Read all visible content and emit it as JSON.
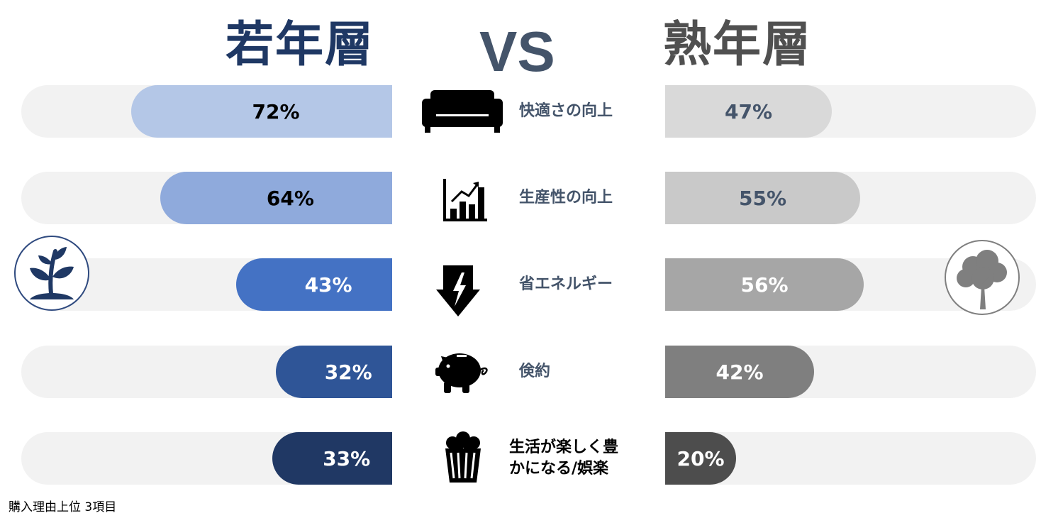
{
  "title_left": "若年層",
  "title_vs": "VS",
  "title_right": "熟年層",
  "footnote": "購入理由上位 3項目",
  "icons": {
    "young": "sprout-icon",
    "old": "tree-icon",
    "rows": [
      "sofa-icon",
      "growth-chart-icon",
      "energy-down-icon",
      "piggy-bank-icon",
      "popcorn-icon"
    ]
  },
  "colors": {
    "track": "#f2f2f2",
    "left_bars": [
      "#b4c7e7",
      "#8faadc",
      "#4472c4",
      "#2f5597",
      "#203864"
    ],
    "right_bars": [
      "#d9d9d9",
      "#c9c9c9",
      "#a6a6a6",
      "#7f7f7f",
      "#4d4d4d"
    ],
    "left_text": [
      "#000000",
      "#000000",
      "#ffffff",
      "#ffffff",
      "#ffffff"
    ],
    "right_text": [
      "#44546a",
      "#44546a",
      "#ffffff",
      "#ffffff",
      "#ffffff"
    ]
  },
  "chart_data": {
    "type": "bar",
    "categories": [
      "快適さの向上",
      "生産性の向上",
      "省エネルギー",
      "倹約",
      "生活が楽しく豊かになる/娯楽"
    ],
    "category_lines": [
      [
        "快適さの向上"
      ],
      [
        "生産性の向上"
      ],
      [
        "省エネルギー"
      ],
      [
        "倹約"
      ],
      [
        "生活が楽しく豊",
        "かになる/娯楽"
      ]
    ],
    "series": [
      {
        "name": "若年層",
        "values": [
          72,
          64,
          43,
          32,
          33
        ],
        "labels": [
          "72%",
          "64%",
          "43%",
          "32%",
          "33%"
        ]
      },
      {
        "name": "熟年層",
        "values": [
          47,
          55,
          56,
          42,
          20
        ],
        "labels": [
          "47%",
          "55%",
          "56%",
          "42%",
          "20%"
        ]
      }
    ],
    "ylim": [
      0,
      100
    ],
    "grid": false,
    "legend": "none"
  }
}
